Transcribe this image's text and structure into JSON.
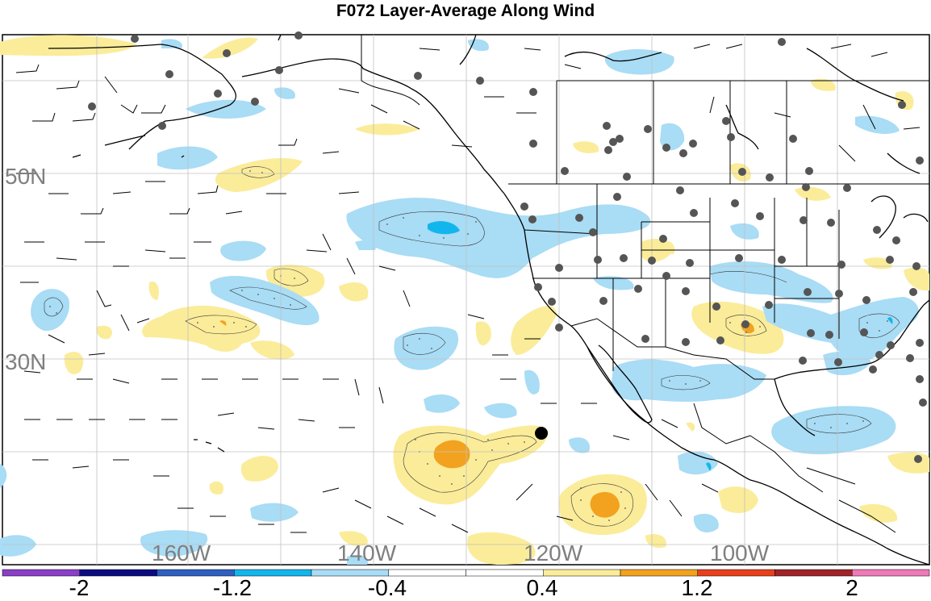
{
  "title": "F072 Layer-Average Along Wind",
  "map": {
    "latitude_labels": [
      "50N",
      "30N"
    ],
    "longitude_labels": [
      "160W",
      "140W",
      "120W",
      "100W"
    ],
    "grid": true,
    "projection_region": "North-East Pacific and North America",
    "station_marker_color": "#555555",
    "target_marker_color": "#000000"
  },
  "colorbar": {
    "tick_labels": [
      "-2",
      "-1.2",
      "-0.4",
      "0.4",
      "1.2",
      "2"
    ],
    "colors": [
      "#8a3fc7",
      "#0c0c80",
      "#2f5fc0",
      "#13b6ec",
      "#a9dcf5",
      "#ffffff",
      "#ffffff",
      "#fbec9a",
      "#f2a21e",
      "#e8401c",
      "#a0242a",
      "#ee7ab7"
    ]
  },
  "palette": {
    "positive_light": "#fbec9a",
    "positive_medium": "#f2a21e",
    "negative_light": "#a9dcf5",
    "negative_medium": "#13b6ec",
    "gridline": "#c0c0c0",
    "coastline": "#000000"
  }
}
